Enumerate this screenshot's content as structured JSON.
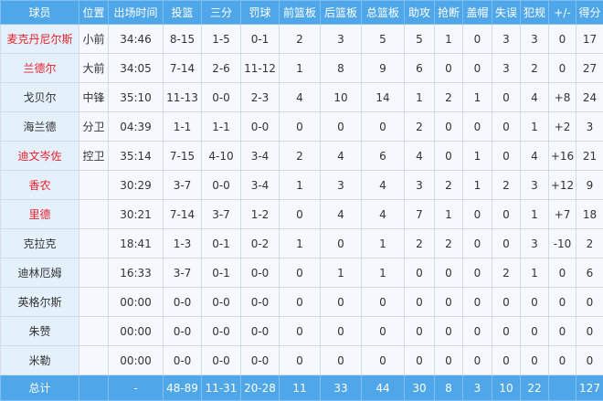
{
  "colors": {
    "header_bg": "#4fa7ea",
    "highlight_name": "#e8202a"
  },
  "headers": [
    "球员",
    "位置",
    "出场时间",
    "投篮",
    "三分",
    "罚球",
    "前篮板",
    "后篮板",
    "总篮板",
    "助攻",
    "抢断",
    "盖帽",
    "失误",
    "犯规",
    "+/-",
    "得分"
  ],
  "rows": [
    {
      "highlight": true,
      "cells": [
        "麦克丹尼尔斯",
        "小前",
        "34:46",
        "8-15",
        "1-5",
        "0-1",
        "2",
        "3",
        "5",
        "5",
        "1",
        "0",
        "3",
        "3",
        "0",
        "17"
      ]
    },
    {
      "highlight": true,
      "cells": [
        "兰德尔",
        "大前",
        "34:05",
        "7-14",
        "2-6",
        "11-12",
        "1",
        "8",
        "9",
        "6",
        "0",
        "0",
        "3",
        "2",
        "0",
        "27"
      ]
    },
    {
      "highlight": false,
      "cells": [
        "戈贝尔",
        "中锋",
        "35:10",
        "11-13",
        "0-0",
        "2-3",
        "4",
        "10",
        "14",
        "1",
        "2",
        "1",
        "0",
        "4",
        "+8",
        "24"
      ]
    },
    {
      "highlight": false,
      "cells": [
        "海兰德",
        "分卫",
        "04:39",
        "1-1",
        "1-1",
        "0-0",
        "0",
        "0",
        "0",
        "2",
        "0",
        "0",
        "0",
        "1",
        "+2",
        "3"
      ]
    },
    {
      "highlight": true,
      "cells": [
        "迪文岑佐",
        "控卫",
        "35:14",
        "7-15",
        "4-10",
        "3-4",
        "2",
        "4",
        "6",
        "4",
        "0",
        "1",
        "0",
        "4",
        "+16",
        "21"
      ]
    },
    {
      "highlight": true,
      "cells": [
        "香农",
        "",
        "30:29",
        "3-7",
        "0-0",
        "3-4",
        "1",
        "3",
        "4",
        "3",
        "2",
        "1",
        "2",
        "3",
        "+12",
        "9"
      ]
    },
    {
      "highlight": true,
      "cells": [
        "里德",
        "",
        "30:21",
        "7-14",
        "3-7",
        "1-2",
        "0",
        "4",
        "4",
        "7",
        "1",
        "0",
        "0",
        "1",
        "+7",
        "18"
      ]
    },
    {
      "highlight": false,
      "cells": [
        "克拉克",
        "",
        "18:41",
        "1-3",
        "0-1",
        "0-2",
        "1",
        "0",
        "1",
        "2",
        "2",
        "0",
        "0",
        "3",
        "-10",
        "2"
      ]
    },
    {
      "highlight": false,
      "cells": [
        "迪林厄姆",
        "",
        "16:33",
        "3-7",
        "0-1",
        "0-0",
        "0",
        "1",
        "1",
        "0",
        "0",
        "0",
        "2",
        "1",
        "0",
        "6"
      ]
    },
    {
      "highlight": false,
      "cells": [
        "英格尔斯",
        "",
        "00:00",
        "0-0",
        "0-0",
        "0-0",
        "0",
        "0",
        "0",
        "0",
        "0",
        "0",
        "0",
        "0",
        "0",
        "0"
      ]
    },
    {
      "highlight": false,
      "cells": [
        "朱赞",
        "",
        "00:00",
        "0-0",
        "0-0",
        "0-0",
        "0",
        "0",
        "0",
        "0",
        "0",
        "0",
        "0",
        "0",
        "0",
        "0"
      ]
    },
    {
      "highlight": false,
      "cells": [
        "米勒",
        "",
        "00:00",
        "0-0",
        "0-0",
        "0-0",
        "0",
        "0",
        "0",
        "0",
        "0",
        "0",
        "0",
        "0",
        "0",
        "0"
      ]
    }
  ],
  "total": [
    "总计",
    "",
    "-",
    "48-89",
    "11-31",
    "20-28",
    "11",
    "33",
    "44",
    "30",
    "8",
    "3",
    "10",
    "22",
    "",
    "127"
  ]
}
